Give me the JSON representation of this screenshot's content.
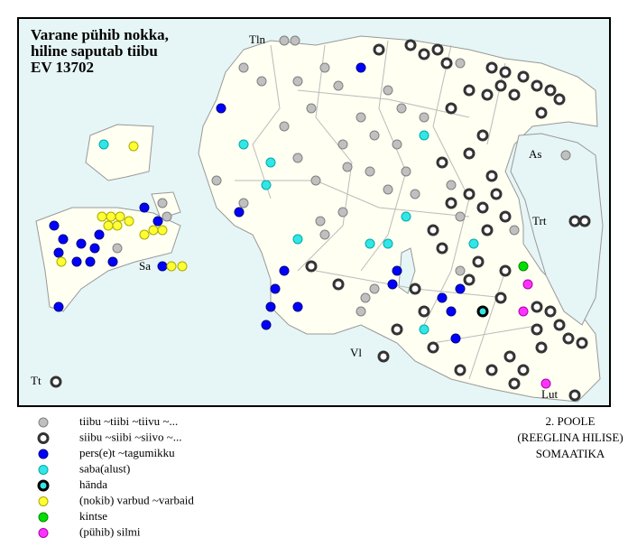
{
  "map": {
    "title": [
      "Varane pühib nokka,",
      "hiline saputab tiibu",
      "EV 13702"
    ],
    "places": [
      "Tln",
      "As",
      "Trt",
      "Sa",
      "Vl",
      "Tt",
      "Lut"
    ],
    "legend": [
      "tiibu ~tiibi ~tiivu ~...",
      "siibu ~siibi ~siivo ~...",
      "pers(e)t ~tagumikku",
      "saba(alust)",
      "hända",
      "(nokib) varbud ~varbaid",
      "kintse",
      "(pühib) silmi"
    ],
    "note": [
      "2. POOLE",
      "(REEGLINA HILISE)",
      "SOMAATIKA"
    ]
  }
}
